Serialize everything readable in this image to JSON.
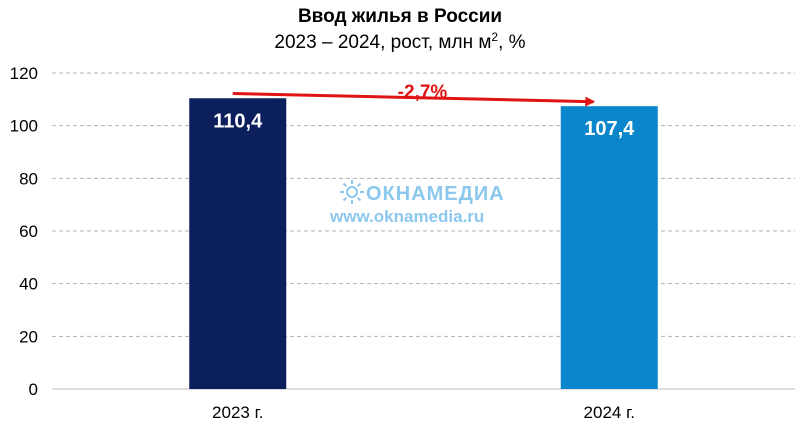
{
  "chart_data": {
    "type": "bar",
    "title": "Ввод жилья в России",
    "subtitle_main": "2023 – 2024, рост, млн м",
    "subtitle_sup": "2",
    "subtitle_tail": ", %",
    "categories": [
      "2023 г.",
      "2024 г."
    ],
    "values": [
      110.4,
      107.4
    ],
    "value_labels": [
      "110,4",
      "107,4"
    ],
    "bar_colors": [
      "#0a1f5c",
      "#0a86cc"
    ],
    "ylim": [
      0,
      120
    ],
    "yticks": [
      0,
      20,
      40,
      60,
      80,
      100,
      120
    ],
    "grid": true,
    "change_label": "-2,7%",
    "change_color": "#e01414"
  },
  "watermark": {
    "brand": "ОКНАМЕДИА",
    "url": "www.oknamedia.ru",
    "color": "#8cc8ee"
  }
}
